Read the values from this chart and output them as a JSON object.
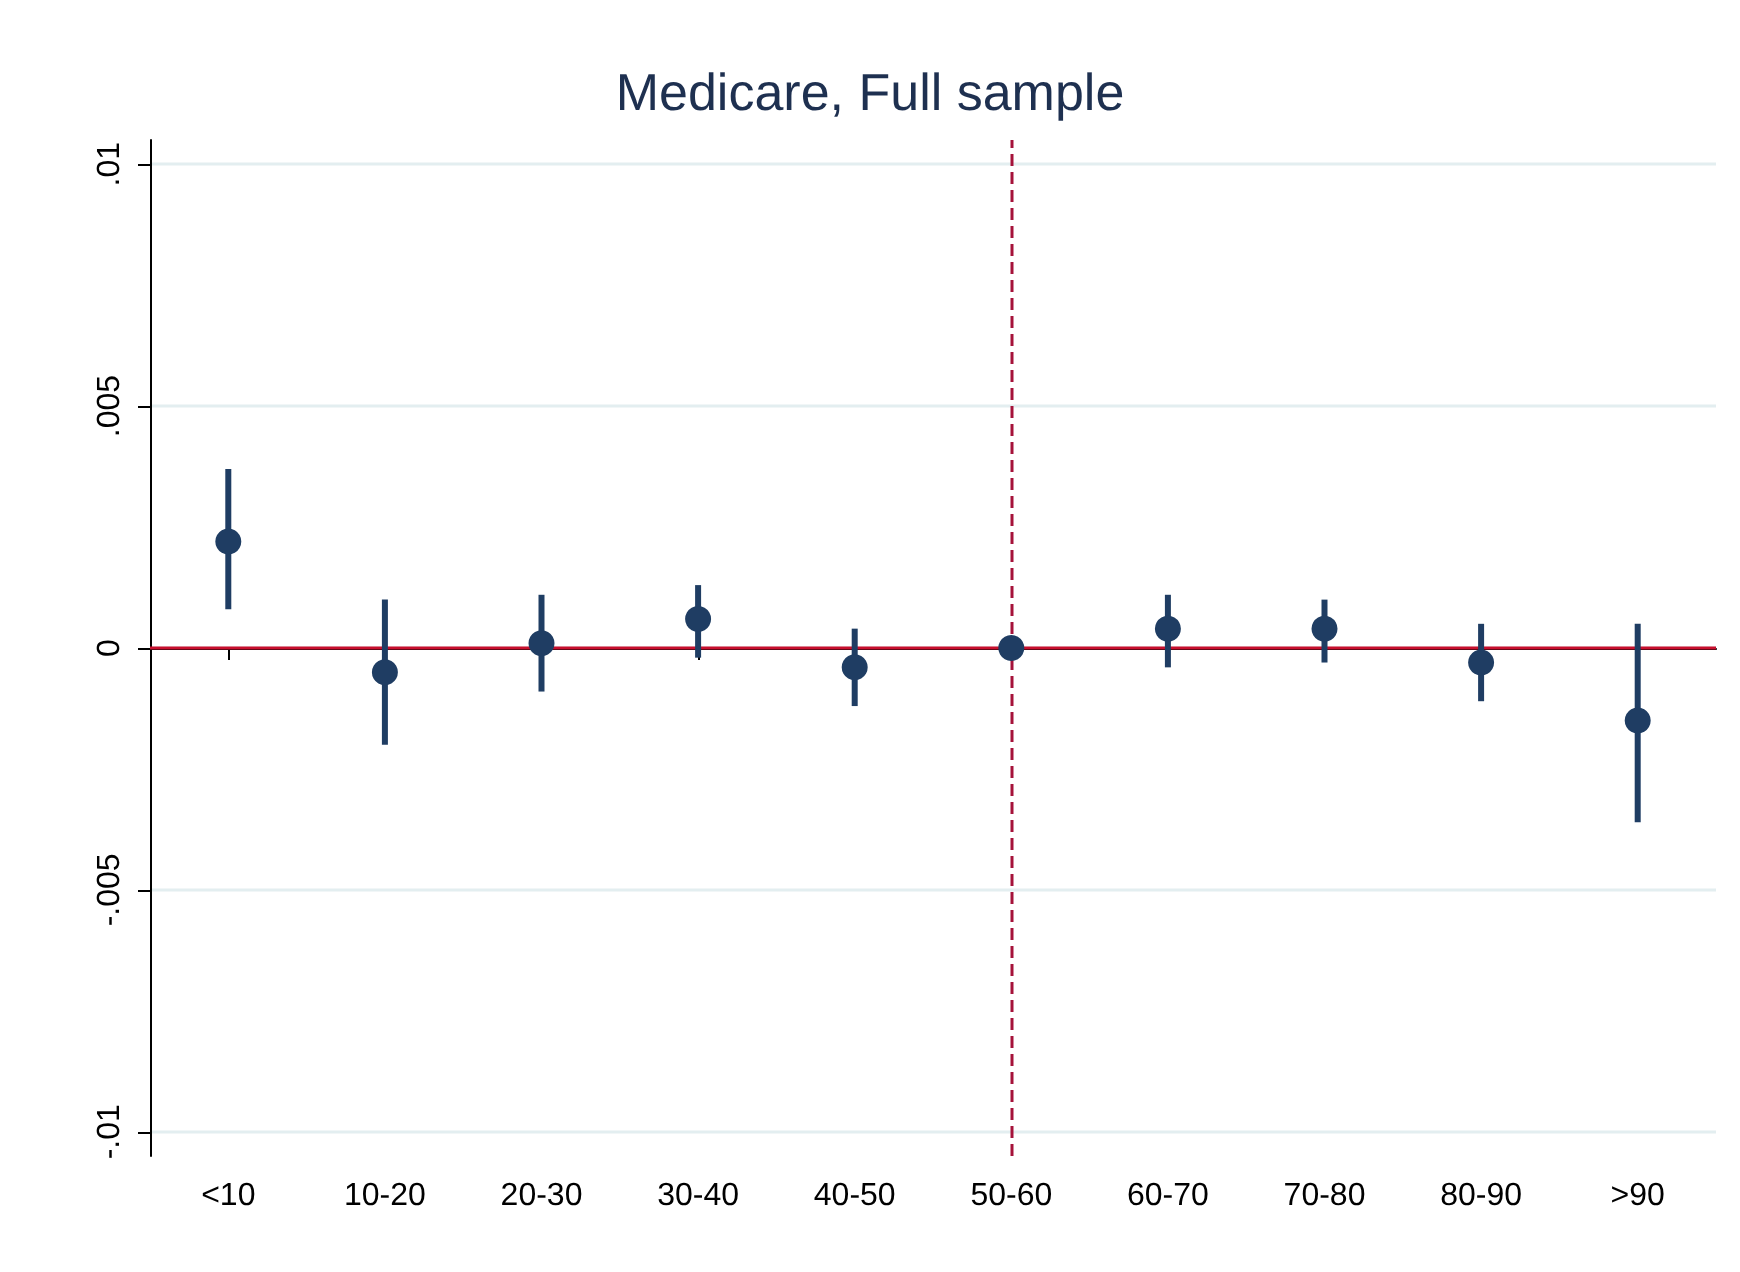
{
  "chart_data": {
    "type": "scatter",
    "title": "Medicare, Full sample",
    "categories": [
      "<10",
      "10-20",
      "20-30",
      "30-40",
      "40-50",
      "50-60",
      "60-70",
      "70-80",
      "80-90",
      ">90"
    ],
    "series": [
      {
        "color": "#1f3d63",
        "values": [
          0.0022,
          -0.0005,
          0.0001,
          0.0006,
          -0.0004,
          0,
          0.0004,
          0.0004,
          -0.0003,
          -0.0015
        ],
        "errors": [
          [
            0.0008,
            0.0037
          ],
          [
            -0.002,
            0.001
          ],
          [
            -0.0009,
            0.0011
          ],
          [
            -0.0002,
            0.0013
          ],
          [
            -0.0012,
            0.0004
          ],
          null,
          [
            -0.0004,
            0.0011
          ],
          [
            -0.0003,
            0.001
          ],
          [
            -0.0011,
            0.0005
          ],
          [
            -0.0036,
            0.0005
          ]
        ]
      }
    ],
    "ylim": [
      -0.0105,
      0.0105
    ],
    "yticks": [
      {
        "value": -0.01,
        "label": "-.01"
      },
      {
        "value": -0.005,
        "label": "-.005"
      },
      {
        "value": 0,
        "label": "0"
      },
      {
        "value": 0.005,
        "label": ".005"
      },
      {
        "value": 0.01,
        "label": ".01"
      }
    ],
    "grid": "y",
    "marker": "circle",
    "ref_lines": [
      {
        "axis": "y",
        "value": 0,
        "color": "#c8102e",
        "line_style": "solid"
      },
      {
        "axis": "x",
        "value": "50-60",
        "color": "#a5123a",
        "line_style": "dashed"
      }
    ]
  }
}
